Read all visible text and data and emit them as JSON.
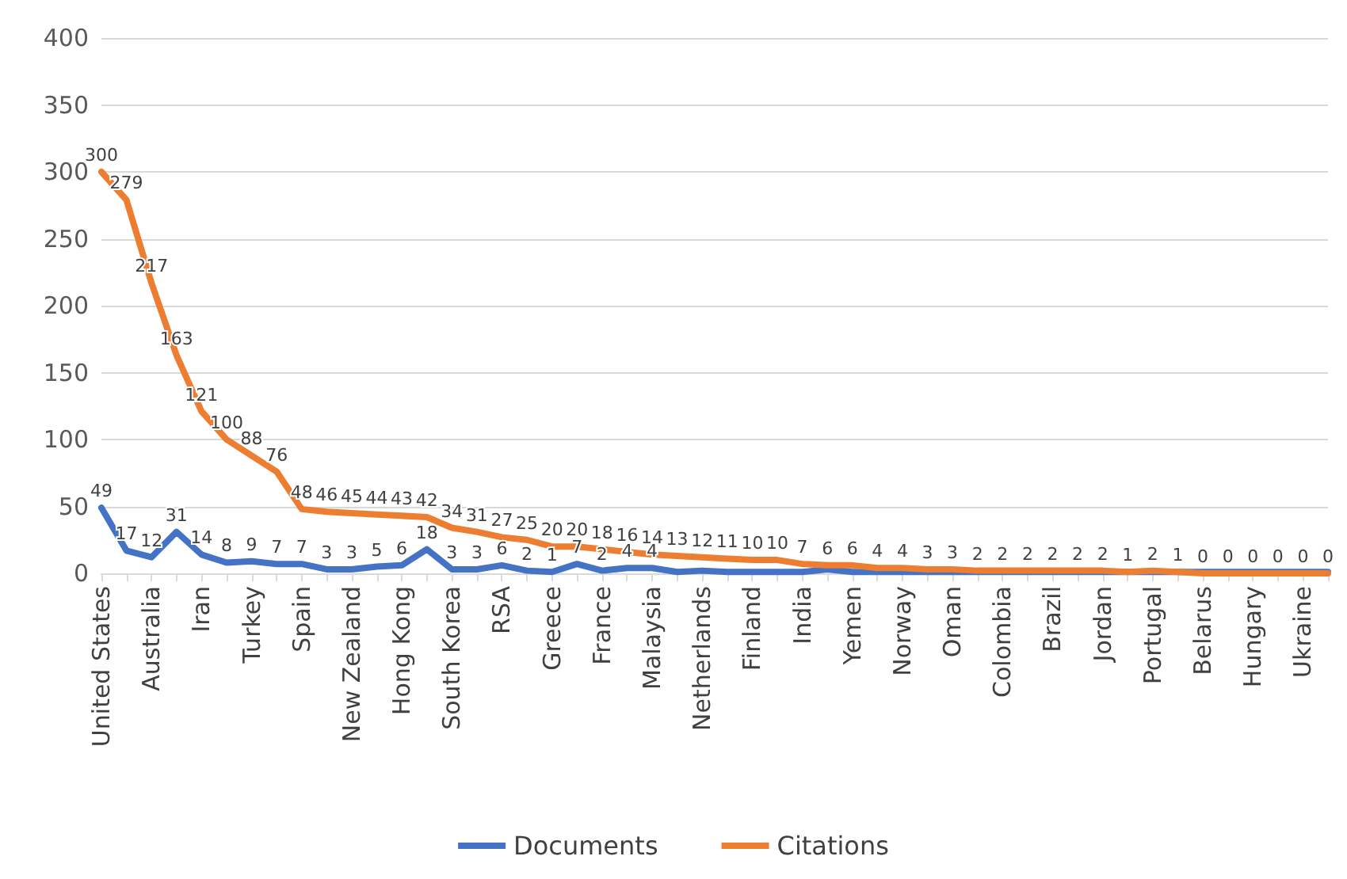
{
  "chart_data": {
    "type": "line",
    "categories": [
      "United States",
      null,
      "Australia",
      null,
      "Iran",
      null,
      "Turkey",
      null,
      "Spain",
      null,
      "New Zealand",
      null,
      "Hong Kong",
      null,
      "South Korea",
      null,
      "RSA",
      null,
      "Greece",
      null,
      "France",
      null,
      "Malaysia",
      null,
      "Netherlands",
      null,
      "Finland",
      null,
      "India",
      null,
      "Yemen",
      null,
      "Norway",
      null,
      "Oman",
      null,
      "Colombia",
      null,
      "Brazil",
      null,
      "Jordan",
      null,
      "Portugal",
      null,
      "Belarus",
      null,
      "Hungary",
      null,
      "Ukraine",
      null
    ],
    "series": [
      {
        "name": "Documents",
        "color": "#4472c4",
        "values": [
          49,
          17,
          12,
          31,
          14,
          8,
          9,
          7,
          7,
          3,
          3,
          5,
          6,
          18,
          3,
          3,
          6,
          2,
          1,
          7,
          2,
          4,
          4,
          1,
          2,
          1,
          1,
          1,
          1,
          3,
          1,
          1,
          1,
          1,
          1,
          1,
          1,
          1,
          1,
          1,
          1,
          1,
          1,
          1,
          1,
          1,
          1,
          1,
          1,
          1
        ],
        "value_labels": [
          "49",
          "17",
          "12",
          "31",
          "14",
          "8",
          "9",
          "7",
          "7",
          "3",
          "3",
          "5",
          "6",
          "18",
          "3",
          "3",
          "6",
          "2",
          "1",
          "7",
          "2",
          "4",
          "4",
          null,
          null,
          null,
          null,
          null,
          null,
          null,
          null,
          null,
          null,
          null,
          null,
          null,
          null,
          null,
          null,
          null,
          null,
          null,
          null,
          null,
          null,
          null,
          null,
          null,
          null,
          null
        ]
      },
      {
        "name": "Citations",
        "color": "#ed7d31",
        "values": [
          300,
          279,
          217,
          163,
          121,
          100,
          88,
          76,
          48,
          46,
          45,
          44,
          43,
          42,
          34,
          31,
          27,
          25,
          20,
          20,
          18,
          16,
          14,
          13,
          12,
          11,
          10,
          10,
          7,
          6,
          6,
          4,
          4,
          3,
          3,
          2,
          2,
          2,
          2,
          2,
          2,
          1,
          2,
          1,
          0,
          0,
          0,
          0,
          0,
          0
        ],
        "value_labels": [
          "300",
          "279",
          "217",
          "163",
          "121",
          "100",
          "88",
          "76",
          "48",
          "46",
          "45",
          "44",
          "43",
          "42",
          "34",
          "31",
          "27",
          "25",
          "20",
          "20",
          "18",
          "16",
          "14",
          "13",
          "12",
          "11",
          "10",
          "10",
          "7",
          "6",
          "6",
          "4",
          "4",
          "3",
          "3",
          "2",
          "2",
          "2",
          "2",
          "2",
          "2",
          "1",
          "2",
          "1",
          "0",
          "0",
          "0",
          "0",
          "0",
          "0"
        ]
      }
    ],
    "ylim": [
      0,
      400
    ],
    "yticks": [
      0,
      50,
      100,
      150,
      200,
      250,
      300,
      350,
      400
    ],
    "grid": "y",
    "legend": "bottom",
    "marker": "none",
    "line_style": "solid"
  }
}
